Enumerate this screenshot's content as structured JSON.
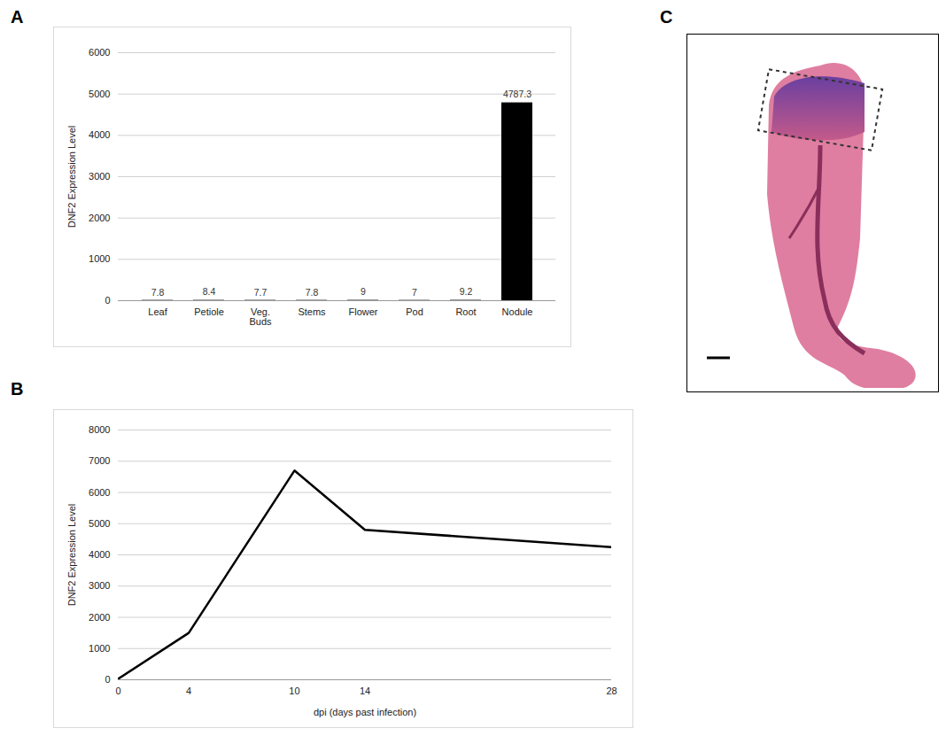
{
  "chart_data": [
    {
      "type": "bar",
      "title": "A",
      "categories": [
        "Leaf",
        "Petiole",
        "Veg. Buds",
        "Stems",
        "Flower",
        "Pod",
        "Root",
        "Nodule"
      ],
      "values": [
        7.8,
        8.4,
        7.7,
        7.8,
        9,
        7,
        9.2,
        4787.3
      ],
      "color": "#000000",
      "ylabel": "DNF2 Expression Level",
      "ylim": [
        0,
        6000
      ],
      "yticks": [
        0,
        1000,
        2000,
        3000,
        4000,
        5000,
        6000
      ],
      "grid": true,
      "data_labels": true
    },
    {
      "type": "line",
      "title": "B",
      "x": [
        0,
        4,
        10,
        14,
        28
      ],
      "values": [
        30,
        1500,
        6700,
        4800,
        4250
      ],
      "color": "#000000",
      "xlabel": "dpi (days past infection)",
      "ylabel": "DNF2 Expression Level",
      "xlim": [
        0,
        28
      ],
      "xticks": [
        0,
        4,
        10,
        14,
        28
      ],
      "ylim": [
        0,
        8000
      ],
      "yticks": [
        0,
        1000,
        2000,
        3000,
        4000,
        5000,
        6000,
        7000,
        8000
      ],
      "grid": true
    },
    {
      "type": "image",
      "title": "C"
    }
  ]
}
